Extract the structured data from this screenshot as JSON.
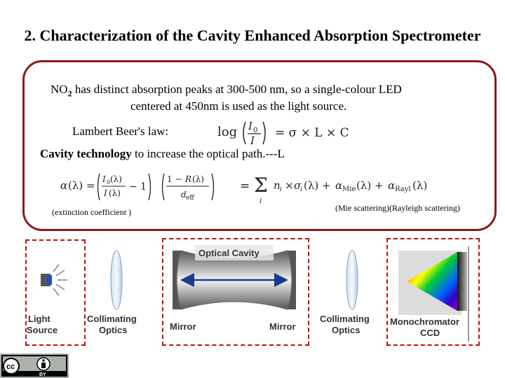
{
  "slide": {
    "title": "2. Characterization of the Cavity Enhanced Absorption Spectrometer",
    "line1_prefix": "NO",
    "line1_sub": "2",
    "line1_rest": " has distinct absorption peaks at 300-500 nm, so a single-colour LED",
    "line2": "centered at 450nm is used as the light source.",
    "lambert_label": "Lambert Beer's law:",
    "cavity_bold": "Cavity technology",
    "cavity_rest": " to increase the optical path.---L",
    "extinction_note": "(extinction coefficient )",
    "scattering_note": "(Mie scattering)(Rayleigh scattering)"
  },
  "equations": {
    "lambert": "log(I0/I) = σ × L × C",
    "cavity": "α(λ) = (I0(λ)/I(λ) − 1)((1 − R(λ))/deff) = Σ ni × σi(λ) + αMie(λ) + αRayl(λ)"
  },
  "diagram": {
    "optical_cavity": "Optical Cavity",
    "light_source": [
      "Light",
      "Source"
    ],
    "collimating_optics": [
      "Collimating",
      "Optics"
    ],
    "mirror": "Mirror",
    "monochromator": [
      "Monochromator",
      "CCD"
    ]
  },
  "license": {
    "cc": "cc",
    "by": "BY"
  },
  "colors": {
    "panel_border": "#8b1a1a",
    "dash_red": "#c01010"
  }
}
